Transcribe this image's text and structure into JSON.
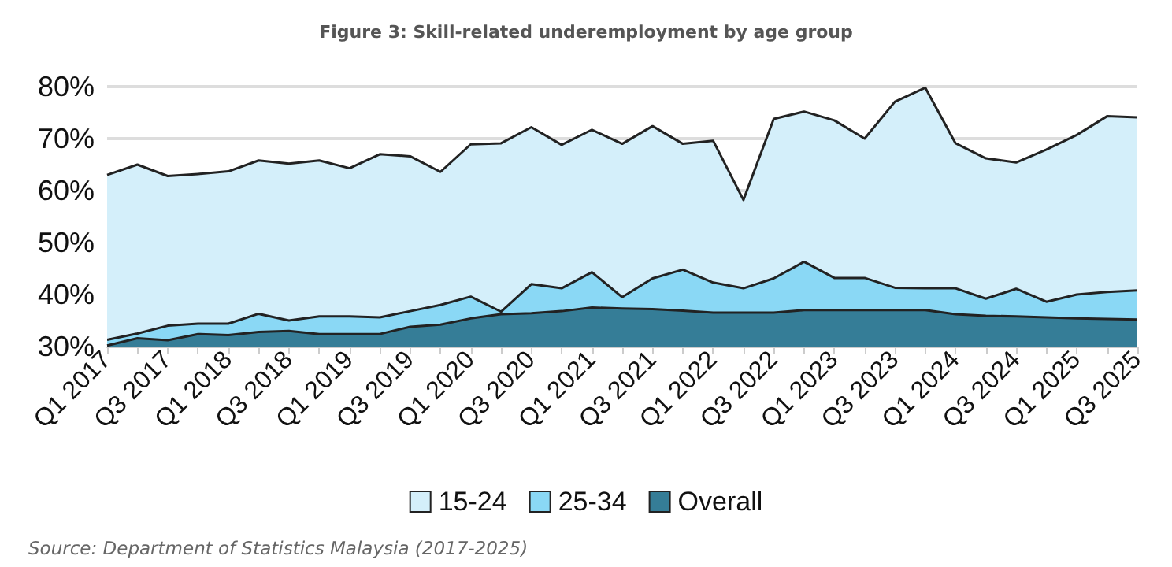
{
  "chart_data": {
    "type": "area",
    "title": "Figure 3: Skill-related underemployment by age group",
    "categories": [
      "Q1 2017",
      null,
      "Q3 2017",
      null,
      "Q1 2018",
      null,
      "Q3 2018",
      null,
      "Q1 2019",
      null,
      "Q3 2019",
      null,
      "Q1 2020",
      null,
      "Q3 2020",
      null,
      "Q1 2021",
      null,
      "Q3 2021",
      null,
      "Q1 2022",
      null,
      "Q3 2022",
      null,
      "Q1 2023",
      null,
      "Q3 2023",
      null,
      "Q1 2024",
      null,
      "Q3 2024",
      null,
      "Q1 2025",
      null,
      "Q3 2025"
    ],
    "series": [
      {
        "name": "15-24",
        "color": "#d4effa",
        "values": [
          63,
          65,
          62.8,
          63.2,
          63.7,
          65.8,
          65.2,
          65.8,
          64.3,
          67,
          66.6,
          63.6,
          68.9,
          69.1,
          72.2,
          68.8,
          71.7,
          69,
          72.4,
          69,
          69.6,
          58.2,
          73.8,
          75.2,
          73.5,
          70,
          77.1,
          79.8,
          69.1,
          66.2,
          65.4,
          67.9,
          70.7,
          74.3,
          74.1
        ]
      },
      {
        "name": "25-34",
        "color": "#8ad8f5",
        "values": [
          31.3,
          32.5,
          34,
          34.4,
          34.4,
          36.3,
          35,
          35.8,
          35.8,
          35.6,
          36.8,
          38,
          39.6,
          36.7,
          42,
          41.2,
          44.3,
          39.5,
          43.1,
          44.8,
          42.3,
          41.2,
          43.1,
          46.3,
          43.2,
          43.2,
          41.3,
          41.2,
          41.2,
          39.2,
          41.1,
          38.6,
          40,
          40.5,
          40.8
        ]
      },
      {
        "name": "Overall",
        "color": "#357d97",
        "values": [
          30.2,
          31.6,
          31.2,
          32.4,
          32.2,
          32.8,
          33,
          32.4,
          32.4,
          32.4,
          33.8,
          34.2,
          35.4,
          36.2,
          36.4,
          36.8,
          37.5,
          37.3,
          37.2,
          36.9,
          36.5,
          36.5,
          36.5,
          37,
          37,
          37,
          37,
          37,
          36.2,
          35.9,
          35.8,
          35.6,
          35.4,
          35.3,
          35.2
        ]
      }
    ],
    "ylim": [
      30,
      80
    ],
    "yticks": [
      {
        "value": 30,
        "label": "30%"
      },
      {
        "value": 40,
        "label": "40%"
      },
      {
        "value": 50,
        "label": "50%"
      },
      {
        "value": 60,
        "label": "60%"
      },
      {
        "value": 70,
        "label": "70%"
      },
      {
        "value": 80,
        "label": "80%"
      }
    ],
    "grid": "y",
    "legend": "bottom",
    "annotations": [
      "Source: Department of Statistics Malaysia (2017-2025)"
    ]
  }
}
